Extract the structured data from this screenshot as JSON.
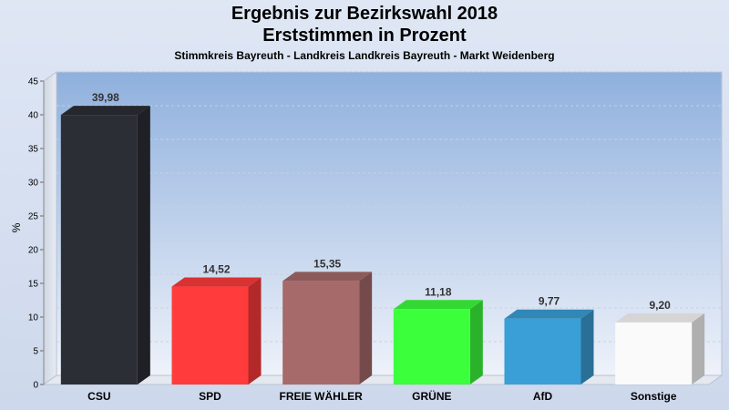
{
  "chart_data": {
    "type": "bar",
    "title": "Ergebnis zur Bezirkswahl 2018",
    "title_line2": "Erststimmen in Prozent",
    "subtitle": "Stimmkreis Bayreuth - Landkreis Landkreis Bayreuth - Markt Weidenberg",
    "ylabel": "%",
    "ylim": [
      0,
      45
    ],
    "yticks": [
      0,
      5,
      10,
      15,
      20,
      25,
      30,
      35,
      40,
      45
    ],
    "grid": true,
    "categories": [
      "CSU",
      "SPD",
      "FREIE WÄHLER",
      "GRÜNE",
      "AfD",
      "Sonstige"
    ],
    "values": [
      39.98,
      14.52,
      15.35,
      11.18,
      9.77,
      9.2
    ],
    "value_labels": [
      "39,98",
      "14,52",
      "15,35",
      "11,18",
      "9,77",
      "9,20"
    ],
    "colors": [
      "#2b2e35",
      "#ff3b3b",
      "#a66a6a",
      "#3cff3c",
      "#3a9fd6",
      "#fafafa"
    ]
  }
}
